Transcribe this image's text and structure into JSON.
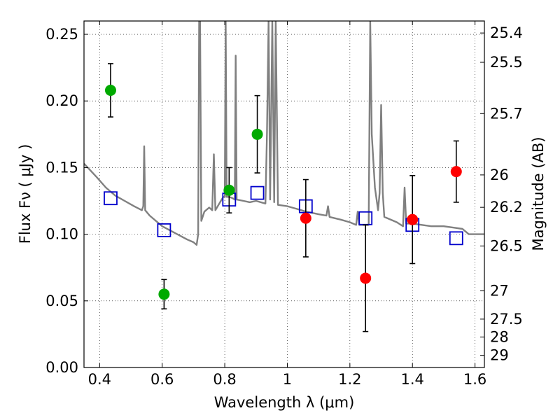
{
  "chart_data": {
    "type": "scatter",
    "xlabel": "Wavelength  λ (μm)",
    "ylabel_left": "Flux  Fν  ( μJy )",
    "ylabel_right": "Magnitude (AB)",
    "xlim": [
      0.35,
      1.63
    ],
    "ylim": [
      0.0,
      0.26
    ],
    "grid": true,
    "x_ticks": [
      0.4,
      0.6,
      0.8,
      1.0,
      1.2,
      1.4,
      1.6
    ],
    "x_tick_labels": [
      "0.4",
      "0.6",
      "0.8",
      "1",
      "1.2",
      "1.4",
      "1.6"
    ],
    "y_ticks": [
      0.0,
      0.05,
      0.1,
      0.15,
      0.2,
      0.25
    ],
    "y_tick_labels": [
      "0.00",
      "0.05",
      "0.10",
      "0.15",
      "0.20",
      "0.25"
    ],
    "right_ticks": [
      {
        "label": "25.4",
        "flux": 0.251
      },
      {
        "label": "25.5",
        "flux": 0.229
      },
      {
        "label": "25.7",
        "flux": 0.1905
      },
      {
        "label": "26",
        "flux": 0.1445
      },
      {
        "label": "26.2",
        "flux": 0.1202
      },
      {
        "label": "26.5",
        "flux": 0.0912
      },
      {
        "label": "27",
        "flux": 0.0575
      },
      {
        "label": "27.5",
        "flux": 0.0363
      },
      {
        "label": "28",
        "flux": 0.0229
      },
      {
        "label": "29",
        "flux": 0.0091
      }
    ],
    "series": [
      {
        "marker": "circle",
        "color": "#00aa00",
        "points": [
          {
            "x": 0.435,
            "y": 0.208,
            "err": 0.02
          },
          {
            "x": 0.606,
            "y": 0.055,
            "err": 0.011
          },
          {
            "x": 0.814,
            "y": 0.133,
            "err": 0.017
          },
          {
            "x": 0.904,
            "y": 0.175,
            "err": 0.029
          }
        ]
      },
      {
        "marker": "circle",
        "color": "#ff0000",
        "points": [
          {
            "x": 1.059,
            "y": 0.112,
            "err": 0.029
          },
          {
            "x": 1.25,
            "y": 0.067,
            "err": 0.04
          },
          {
            "x": 1.4,
            "y": 0.111,
            "err": 0.033
          },
          {
            "x": 1.54,
            "y": 0.147,
            "err": 0.023
          }
        ]
      },
      {
        "marker": "open-square",
        "color": "#0000cc",
        "points": [
          {
            "x": 0.435,
            "y": 0.127
          },
          {
            "x": 0.606,
            "y": 0.103
          },
          {
            "x": 0.814,
            "y": 0.126
          },
          {
            "x": 0.904,
            "y": 0.131
          },
          {
            "x": 1.059,
            "y": 0.121
          },
          {
            "x": 1.25,
            "y": 0.112
          },
          {
            "x": 1.4,
            "y": 0.107
          },
          {
            "x": 1.54,
            "y": 0.097
          }
        ]
      },
      {
        "marker": "line",
        "color": "#808080",
        "points": [
          [
            0.35,
            0.153
          ],
          [
            0.37,
            0.148
          ],
          [
            0.39,
            0.143
          ],
          [
            0.42,
            0.135
          ],
          [
            0.45,
            0.129
          ],
          [
            0.48,
            0.125
          ],
          [
            0.51,
            0.121
          ],
          [
            0.535,
            0.118
          ],
          [
            0.5395,
            0.121
          ],
          [
            0.5425,
            0.166
          ],
          [
            0.5455,
            0.118
          ],
          [
            0.56,
            0.114
          ],
          [
            0.6,
            0.106
          ],
          [
            0.64,
            0.101
          ],
          [
            0.68,
            0.096
          ],
          [
            0.7,
            0.094
          ],
          [
            0.71,
            0.092
          ],
          [
            0.715,
            0.1
          ],
          [
            0.718,
            0.26
          ],
          [
            0.721,
            0.26
          ],
          [
            0.725,
            0.11
          ],
          [
            0.735,
            0.117
          ],
          [
            0.75,
            0.12
          ],
          [
            0.76,
            0.118
          ],
          [
            0.765,
            0.16
          ],
          [
            0.77,
            0.118
          ],
          [
            0.785,
            0.124
          ],
          [
            0.795,
            0.128
          ],
          [
            0.8,
            0.128
          ],
          [
            0.803,
            0.26
          ],
          [
            0.806,
            0.128
          ],
          [
            0.815,
            0.128
          ],
          [
            0.825,
            0.127
          ],
          [
            0.832,
            0.126
          ],
          [
            0.835,
            0.234
          ],
          [
            0.838,
            0.126
          ],
          [
            0.86,
            0.125
          ],
          [
            0.88,
            0.124
          ],
          [
            0.9,
            0.125
          ],
          [
            0.93,
            0.123
          ],
          [
            0.935,
            0.176
          ],
          [
            0.94,
            0.26
          ],
          [
            0.945,
            0.126
          ],
          [
            0.952,
            0.26
          ],
          [
            0.958,
            0.124
          ],
          [
            0.963,
            0.26
          ],
          [
            0.97,
            0.122
          ],
          [
            1.0,
            0.121
          ],
          [
            1.03,
            0.119
          ],
          [
            1.06,
            0.117
          ],
          [
            1.1,
            0.115
          ],
          [
            1.125,
            0.114
          ],
          [
            1.13,
            0.121
          ],
          [
            1.135,
            0.113
          ],
          [
            1.17,
            0.111
          ],
          [
            1.2,
            0.109
          ],
          [
            1.22,
            0.107
          ],
          [
            1.225,
            0.117
          ],
          [
            1.23,
            0.107
          ],
          [
            1.26,
            0.107
          ],
          [
            1.265,
            0.26
          ],
          [
            1.27,
            0.175
          ],
          [
            1.28,
            0.135
          ],
          [
            1.29,
            0.118
          ],
          [
            1.295,
            0.131
          ],
          [
            1.3,
            0.197
          ],
          [
            1.305,
            0.131
          ],
          [
            1.31,
            0.113
          ],
          [
            1.35,
            0.109
          ],
          [
            1.37,
            0.106
          ],
          [
            1.375,
            0.135
          ],
          [
            1.38,
            0.108
          ],
          [
            1.4,
            0.108
          ],
          [
            1.43,
            0.107
          ],
          [
            1.46,
            0.106
          ],
          [
            1.5,
            0.106
          ],
          [
            1.53,
            0.105
          ],
          [
            1.56,
            0.104
          ],
          [
            1.58,
            0.1
          ],
          [
            1.6,
            0.1
          ],
          [
            1.63,
            0.1
          ]
        ]
      }
    ]
  }
}
